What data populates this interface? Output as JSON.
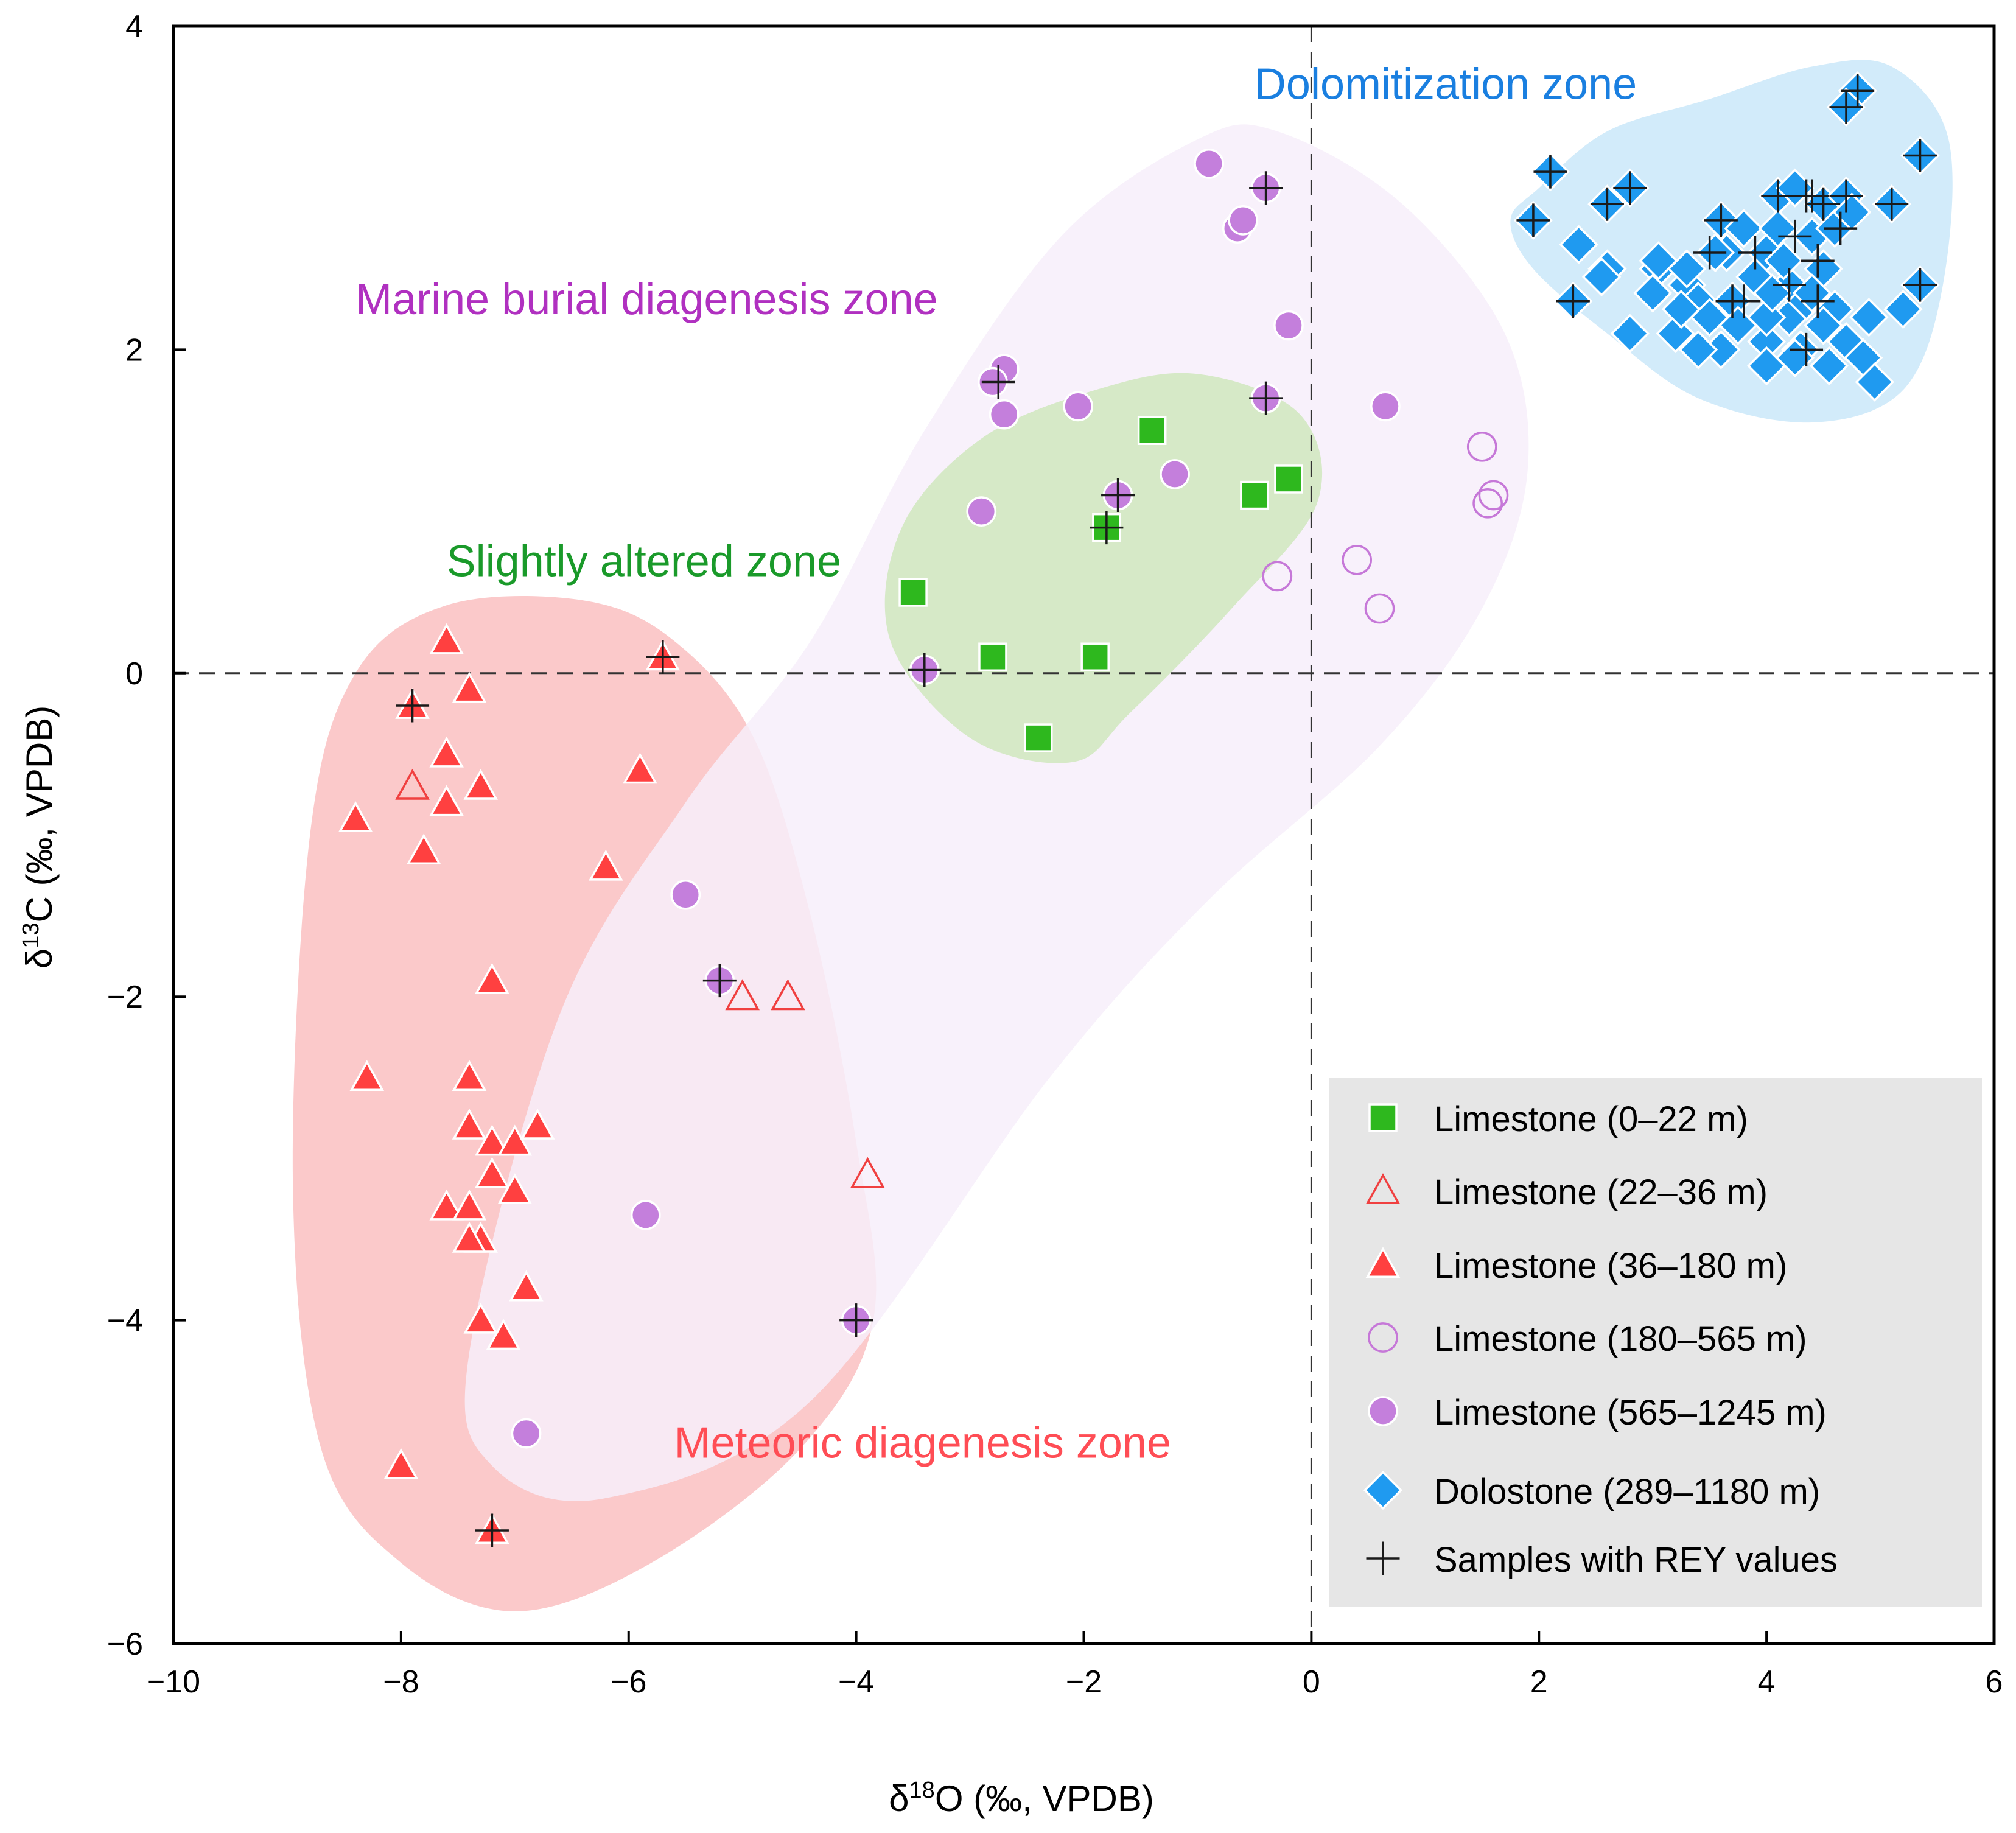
{
  "chart_data": {
    "type": "scatter",
    "xlabel": "δ18O (‰, VPDB)",
    "ylabel": "δ13C (‰, VPDB)",
    "x_label_parts": {
      "prefix": "δ",
      "sup": "18",
      "suffix": "O (‰, VPDB)"
    },
    "y_label_parts": {
      "prefix": "δ",
      "sup": "13",
      "suffix": "C (‰, VPDB)"
    },
    "xlim": [
      -10,
      6
    ],
    "ylim": [
      -6,
      4
    ],
    "x_ticks": [
      -10,
      -8,
      -6,
      -4,
      -2,
      0,
      2,
      4,
      6
    ],
    "y_ticks": [
      -6,
      -4,
      -2,
      0,
      2,
      4
    ],
    "x_tick_labels": [
      "−10",
      "−8",
      "−6",
      "−4",
      "−2",
      "0",
      "2",
      "4",
      "6"
    ],
    "y_tick_labels": [
      "−6",
      "−4",
      "−2",
      "0",
      "2",
      "4"
    ],
    "reference_lines": {
      "x": 0,
      "y": 0,
      "style": "dashed"
    },
    "zones": [
      {
        "name": "Meteoric diagenesis zone",
        "label": "Meteoric diagenesis zone",
        "color": "#ff4d55",
        "fill": "#fbc3c4",
        "label_at": [
          -5.6,
          -4.85
        ],
        "outline": [
          [
            -7.6,
            0.42
          ],
          [
            -6.4,
            0.45
          ],
          [
            -5.6,
            0.2
          ],
          [
            -4.9,
            -0.4
          ],
          [
            -4.4,
            -1.5
          ],
          [
            -4.0,
            -2.9
          ],
          [
            -3.85,
            -4.0
          ],
          [
            -4.5,
            -4.8
          ],
          [
            -5.8,
            -5.5
          ],
          [
            -7.0,
            -5.8
          ],
          [
            -8.0,
            -5.5
          ],
          [
            -8.7,
            -4.8
          ],
          [
            -8.95,
            -3.2
          ],
          [
            -8.8,
            -1.0
          ],
          [
            -8.4,
            0.0
          ]
        ]
      },
      {
        "name": "Marine burial diagenesis zone",
        "label": "Marine burial diagenesis zone",
        "color": "#b030c0",
        "fill": "#f7eefa",
        "label_at": [
          -8.4,
          2.22
        ],
        "outline": [
          [
            -4.4,
            0.2
          ],
          [
            -3.4,
            1.5
          ],
          [
            -2.2,
            2.7
          ],
          [
            -1.0,
            3.3
          ],
          [
            -0.3,
            3.35
          ],
          [
            0.8,
            2.9
          ],
          [
            1.7,
            2.1
          ],
          [
            1.9,
            1.25
          ],
          [
            1.5,
            0.4
          ],
          [
            0.6,
            -0.45
          ],
          [
            -0.9,
            -1.4
          ],
          [
            -2.3,
            -2.5
          ],
          [
            -4.4,
            -4.5
          ],
          [
            -6.2,
            -5.1
          ],
          [
            -7.2,
            -4.9
          ],
          [
            -7.4,
            -4.2
          ],
          [
            -6.6,
            -2.1
          ],
          [
            -5.5,
            -0.8
          ]
        ]
      },
      {
        "name": "Slightly altered zone",
        "label": "Slightly altered zone",
        "color": "#1a9a2a",
        "fill": "#d1e8c1",
        "label_at": [
          -7.6,
          0.6
        ],
        "outline": [
          [
            -3.6,
            0.9
          ],
          [
            -2.9,
            1.45
          ],
          [
            -1.9,
            1.75
          ],
          [
            -1.0,
            1.85
          ],
          [
            -0.1,
            1.6
          ],
          [
            0.05,
            1.05
          ],
          [
            -0.7,
            0.4
          ],
          [
            -1.6,
            -0.25
          ],
          [
            -2.1,
            -0.55
          ],
          [
            -3.0,
            -0.4
          ],
          [
            -3.7,
            0.2
          ]
        ]
      },
      {
        "name": "Dolomitization zone",
        "label": "Dolomitization zone",
        "color": "#1a7fe0",
        "fill": "#cde9fa",
        "label_at": [
          -0.5,
          3.55
        ],
        "outline": [
          [
            2.0,
            3.0
          ],
          [
            2.6,
            3.35
          ],
          [
            3.5,
            3.55
          ],
          [
            4.4,
            3.75
          ],
          [
            5.1,
            3.75
          ],
          [
            5.6,
            3.3
          ],
          [
            5.55,
            2.4
          ],
          [
            5.2,
            1.75
          ],
          [
            4.4,
            1.55
          ],
          [
            3.4,
            1.7
          ],
          [
            2.6,
            2.1
          ],
          [
            1.95,
            2.5
          ],
          [
            1.75,
            2.8
          ]
        ]
      }
    ],
    "series": [
      {
        "name": "Limestone (0–22 m)",
        "marker": "square",
        "color": "#2eb81e",
        "filled": true,
        "x": [
          -3.5,
          -1.4,
          -0.5,
          -0.2,
          -1.8,
          -2.8,
          -1.9,
          -2.4
        ],
        "y": [
          0.5,
          1.5,
          1.1,
          1.2,
          0.9,
          0.1,
          0.1,
          -0.4
        ]
      },
      {
        "name": "Limestone (22–36 m)",
        "marker": "triangle",
        "color": "#f04040",
        "filled": false,
        "x": [
          -7.9,
          -5.0,
          -4.6,
          -3.9
        ],
        "y": [
          -0.7,
          -2.0,
          -2.0,
          -3.1
        ]
      },
      {
        "name": "Limestone (36–180 m)",
        "marker": "triangle",
        "color": "#ff4040",
        "filled": true,
        "x": [
          -7.6,
          -7.4,
          -7.9,
          -5.7,
          -7.6,
          -7.3,
          -7.6,
          -5.9,
          -8.4,
          -7.8,
          -6.2,
          -7.2,
          -8.3,
          -7.4,
          -7.4,
          -7.2,
          -7.0,
          -6.8,
          -7.2,
          -7.0,
          -7.6,
          -7.4,
          -7.3,
          -7.4,
          -6.9,
          -7.3,
          -7.1,
          -8.0,
          -7.2
        ],
        "y": [
          0.2,
          -0.1,
          -0.2,
          0.1,
          -0.5,
          -0.7,
          -0.8,
          -0.6,
          -0.9,
          -1.1,
          -1.2,
          -1.9,
          -2.5,
          -2.5,
          -2.8,
          -2.9,
          -2.9,
          -2.8,
          -3.1,
          -3.2,
          -3.3,
          -3.3,
          -3.5,
          -3.5,
          -3.8,
          -4.0,
          -4.1,
          -4.9,
          -5.3
        ]
      },
      {
        "name": "Limestone (180–565 m)",
        "marker": "circle",
        "color": "#c678d8",
        "filled": false,
        "x": [
          1.5,
          1.6,
          1.55,
          0.4,
          -0.3,
          0.6
        ],
        "y": [
          1.4,
          1.1,
          1.05,
          0.7,
          0.6,
          0.4
        ]
      },
      {
        "name": "Limestone (565–1245 m)",
        "marker": "circle",
        "color": "#c47fdc",
        "filled": true,
        "x": [
          -0.9,
          -0.4,
          -0.65,
          -0.6,
          -0.2,
          -2.7,
          -2.8,
          -2.7,
          -2.05,
          -0.4,
          0.65,
          -1.2,
          -1.7,
          -2.9,
          -3.4,
          -5.5,
          -5.2,
          -5.85,
          -4.0,
          -6.9
        ],
        "y": [
          3.15,
          3.0,
          2.75,
          2.8,
          2.15,
          1.88,
          1.8,
          1.6,
          1.65,
          1.7,
          1.65,
          1.23,
          1.1,
          1.0,
          0.02,
          -1.37,
          -1.9,
          -3.35,
          -4.0,
          -4.7
        ]
      },
      {
        "name": "Dolostone (289–1180 m)",
        "marker": "diamond",
        "color": "#1f9af0",
        "filled": true,
        "x": [
          4.8,
          4.7,
          5.35,
          2.1,
          1.95,
          2.6,
          2.8,
          3.6,
          4.1,
          4.4,
          4.5,
          4.7,
          5.1,
          4.25,
          3.65,
          3.8,
          4.2,
          2.35,
          3.55,
          4.0,
          4.1,
          4.5,
          2.6,
          3.05,
          3.3,
          2.3,
          3.4,
          3.7,
          4.2,
          4.35,
          4.6,
          4.9,
          5.2,
          5.35,
          2.8,
          3.2,
          3.6,
          4.0,
          4.3,
          4.7,
          3.5,
          4.0,
          4.5,
          4.85,
          3.4,
          3.75,
          4.25,
          4.55,
          4.95,
          4.0,
          3.3,
          3.05,
          2.55,
          4.6,
          3.0,
          4.75,
          3.9,
          4.15,
          4.4,
          3.25,
          4.05
        ],
        "y": [
          3.6,
          3.5,
          3.2,
          3.1,
          2.8,
          2.9,
          3.0,
          2.8,
          2.95,
          2.7,
          2.9,
          2.95,
          2.9,
          3.0,
          2.6,
          2.75,
          2.4,
          2.65,
          2.6,
          2.6,
          2.75,
          2.5,
          2.5,
          2.5,
          2.4,
          2.3,
          2.3,
          2.3,
          2.2,
          2.3,
          2.25,
          2.2,
          2.25,
          2.4,
          2.1,
          2.1,
          2.0,
          2.05,
          2.0,
          2.05,
          2.2,
          2.2,
          2.15,
          1.95,
          2.0,
          2.15,
          1.95,
          1.9,
          1.8,
          1.9,
          2.5,
          2.55,
          2.45,
          2.75,
          2.35,
          2.85,
          2.45,
          2.55,
          2.35,
          2.25,
          2.35
        ]
      },
      {
        "name": "Samples with REY values",
        "marker": "plus",
        "color": "#1a1a1a",
        "filled": false,
        "x": [
          -0.4,
          -2.75,
          -0.4,
          -1.7,
          -1.8,
          -3.4,
          -5.7,
          -7.9,
          -5.2,
          -4.0,
          -7.2,
          4.8,
          4.7,
          5.35,
          2.1,
          1.95,
          2.6,
          2.8,
          3.6,
          4.1,
          4.4,
          4.5,
          4.7,
          5.1,
          4.65,
          4.2,
          4.25,
          4.45,
          3.9,
          3.5,
          3.7,
          3.8,
          4.45,
          4.35,
          4.35,
          2.3,
          5.35
        ],
        "y": [
          3.0,
          1.8,
          1.7,
          1.1,
          0.9,
          0.02,
          0.1,
          -0.2,
          -1.9,
          -4.0,
          -5.3,
          3.6,
          3.5,
          3.2,
          3.1,
          2.8,
          2.9,
          3.0,
          2.8,
          2.95,
          2.95,
          2.9,
          2.95,
          2.9,
          2.75,
          2.4,
          2.7,
          2.55,
          2.6,
          2.6,
          2.3,
          2.3,
          2.3,
          2.0,
          2.95,
          2.3,
          2.4
        ]
      }
    ],
    "legend": {
      "placement": "bottom-right",
      "background": "#e6e6e6",
      "entries": [
        {
          "label": "Limestone (0–22 m)",
          "marker": "square",
          "color": "#2eb81e",
          "filled": true
        },
        {
          "label": "Limestone (22–36 m)",
          "marker": "triangle",
          "color": "#f04040",
          "filled": false
        },
        {
          "label": "Limestone (36–180 m)",
          "marker": "triangle",
          "color": "#ff4040",
          "filled": true
        },
        {
          "label": "Limestone (180–565 m)",
          "marker": "circle",
          "color": "#c678d8",
          "filled": false
        },
        {
          "label": "Limestone (565–1245 m)",
          "marker": "circle",
          "color": "#c47fdc",
          "filled": true
        },
        {
          "label": "Dolostone (289–1180 m)",
          "marker": "diamond",
          "color": "#1f9af0",
          "filled": true
        },
        {
          "label": "Samples with REY values",
          "marker": "plus",
          "color": "#1a1a1a",
          "filled": false
        }
      ]
    }
  }
}
